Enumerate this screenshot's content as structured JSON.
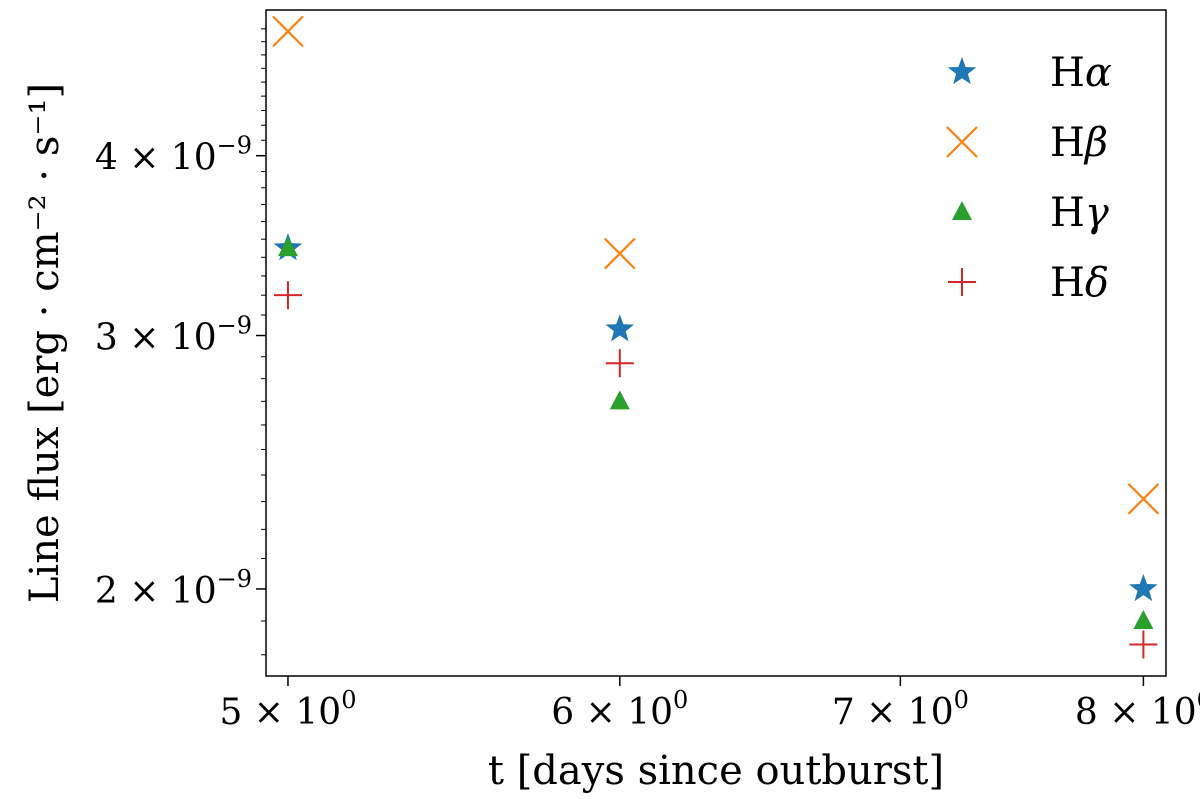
{
  "chart_data": {
    "type": "scatter",
    "title": "",
    "xlabel": "t [days since outburst]",
    "ylabel": "Line flux [erg · cm⁻² · s⁻¹]",
    "xscale": "log",
    "yscale": "log",
    "xlim": [
      4.94,
      8.1
    ],
    "ylim": [
      1.74e-09,
      5.05e-09
    ],
    "x_ticks": [
      {
        "value": 5,
        "mantissa": "5",
        "exp": "0"
      },
      {
        "value": 6,
        "mantissa": "6",
        "exp": "0"
      },
      {
        "value": 7,
        "mantissa": "7",
        "exp": "0"
      },
      {
        "value": 8,
        "mantissa": "8",
        "exp": "0"
      }
    ],
    "y_ticks": [
      {
        "value": 2e-09,
        "mantissa": "2",
        "exp": "−9"
      },
      {
        "value": 3e-09,
        "mantissa": "3",
        "exp": "−9"
      },
      {
        "value": 4e-09,
        "mantissa": "4",
        "exp": "−9"
      }
    ],
    "grid": false,
    "legend_position": "top-right",
    "series": [
      {
        "name": "α",
        "marker": "star",
        "color": "#1f77b4",
        "x": [
          5,
          6,
          8
        ],
        "y": [
          3.45e-09,
          3.03e-09,
          2e-09
        ]
      },
      {
        "name": "β",
        "marker": "x",
        "color": "#ff7f0e",
        "x": [
          5,
          6,
          8
        ],
        "y": [
          4.88e-09,
          3.42e-09,
          2.31e-09
        ]
      },
      {
        "name": "γ",
        "marker": "triangle",
        "color": "#2ca02c",
        "x": [
          5,
          6,
          8
        ],
        "y": [
          3.45e-09,
          2.7e-09,
          1.9e-09
        ]
      },
      {
        "name": "δ",
        "marker": "plus",
        "color": "#d62728",
        "x": [
          5,
          6,
          8
        ],
        "y": [
          3.2e-09,
          2.87e-09,
          1.83e-09
        ]
      }
    ]
  }
}
